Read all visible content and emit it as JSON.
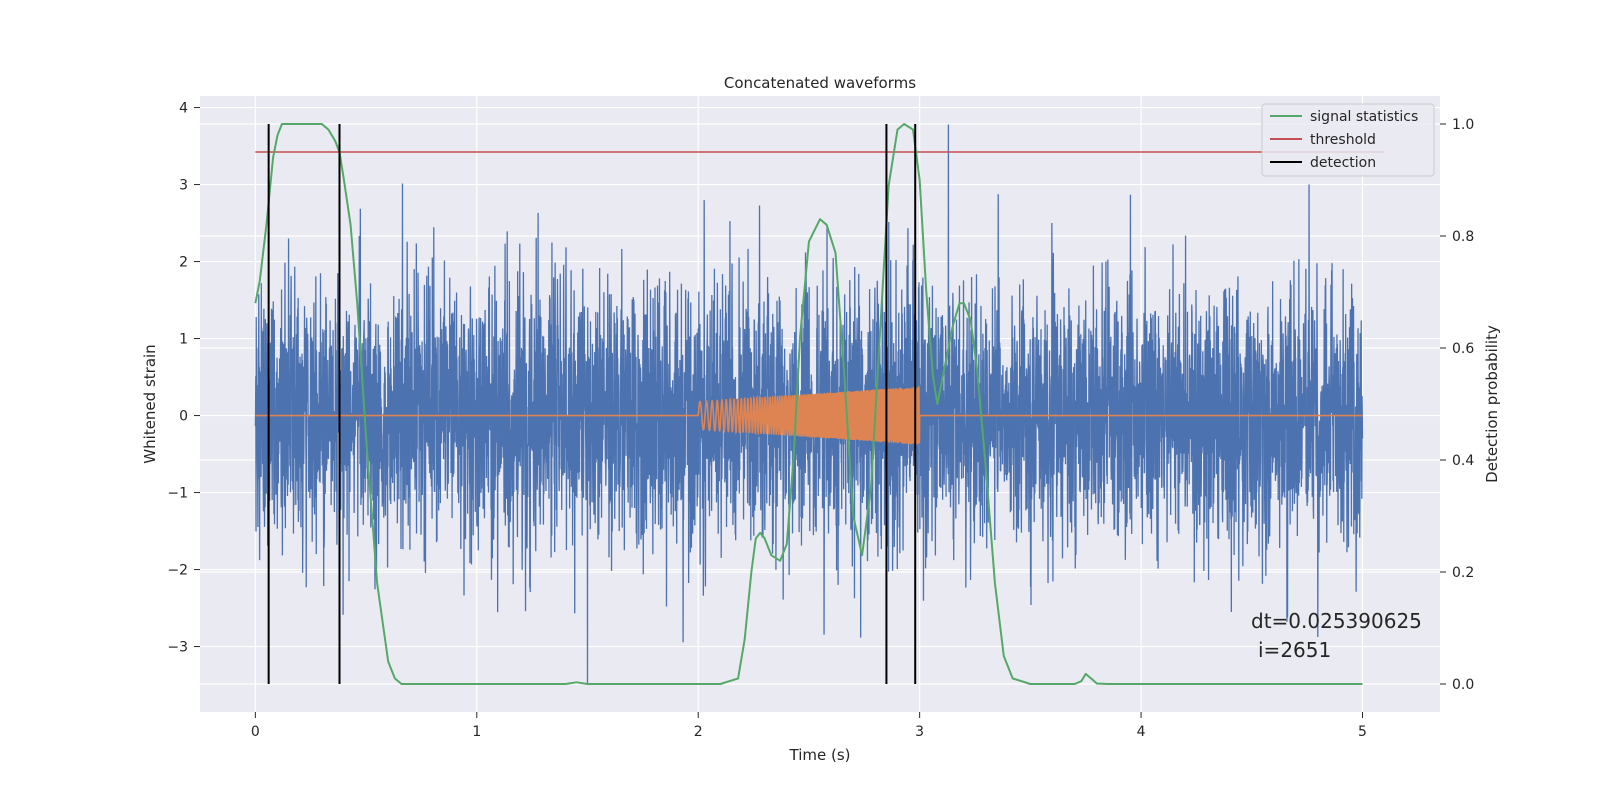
{
  "chart_data": {
    "type": "line",
    "title": "Concatenated waveforms",
    "xlabel": "Time (s)",
    "ylabel": "Whitened strain",
    "y2label": "Detection probability",
    "xlim": [
      -0.25,
      5.35
    ],
    "ylim": [
      -3.85,
      4.15
    ],
    "y2lim": [
      -0.05,
      1.05
    ],
    "x_ticks": [
      0,
      1,
      2,
      3,
      4,
      5
    ],
    "y_ticks": [
      -3,
      -2,
      -1,
      0,
      1,
      2,
      3,
      4
    ],
    "y2_ticks": [
      0.0,
      0.2,
      0.4,
      0.6,
      0.8,
      1.0
    ],
    "grid": true,
    "legend_position": "top-right",
    "colors": {
      "strain": "#4c72b0",
      "waveform": "#dd8452",
      "signal_statistics": "#55a868",
      "threshold": "#c44e52",
      "detection": "#000000",
      "background": "#eaeaf2",
      "grid": "#ffffff"
    },
    "series": [
      {
        "name": "",
        "axis": "left",
        "kind": "noise",
        "x_range": [
          0,
          5
        ],
        "std": 0.85,
        "typical_max": 2.5,
        "typical_min": -2.5,
        "extreme_max": 3.78,
        "extreme_min": -3.48,
        "extreme_max_x": 3.13,
        "extreme_min_x": 1.5
      },
      {
        "name": "",
        "axis": "left",
        "kind": "chirp",
        "flat_range": [
          0,
          5
        ],
        "chirp_start": 2.0,
        "chirp_end": 3.0,
        "amp_start": 0.18,
        "amp_end": 0.38
      },
      {
        "name": "signal statistics",
        "axis": "right",
        "x": [
          0.0,
          0.02,
          0.05,
          0.08,
          0.1,
          0.12,
          0.15,
          0.2,
          0.3,
          0.33,
          0.36,
          0.38,
          0.4,
          0.43,
          0.46,
          0.5,
          0.55,
          0.6,
          0.63,
          0.66,
          0.7,
          0.9,
          1.4,
          1.45,
          1.5,
          1.55,
          1.8,
          2.1,
          2.18,
          2.21,
          2.24,
          2.26,
          2.28,
          2.3,
          2.33,
          2.37,
          2.4,
          2.43,
          2.46,
          2.5,
          2.55,
          2.58,
          2.62,
          2.66,
          2.7,
          2.74,
          2.78,
          2.82,
          2.86,
          2.9,
          2.93,
          2.97,
          3.0,
          3.03,
          3.06,
          3.08,
          3.12,
          3.15,
          3.18,
          3.2,
          3.23,
          3.26,
          3.3,
          3.34,
          3.38,
          3.42,
          3.5,
          3.7,
          3.73,
          3.75,
          3.78,
          3.8,
          3.85,
          4.2,
          5.0
        ],
        "values": [
          0.68,
          0.72,
          0.82,
          0.94,
          0.98,
          1.0,
          1.0,
          1.0,
          1.0,
          0.99,
          0.97,
          0.95,
          0.9,
          0.82,
          0.68,
          0.44,
          0.18,
          0.04,
          0.01,
          0.0,
          0.0,
          0.0,
          0.0,
          0.003,
          0.0,
          0.0,
          0.0,
          0.0,
          0.01,
          0.08,
          0.2,
          0.26,
          0.27,
          0.26,
          0.23,
          0.22,
          0.25,
          0.4,
          0.62,
          0.79,
          0.83,
          0.82,
          0.77,
          0.55,
          0.3,
          0.23,
          0.35,
          0.62,
          0.89,
          0.99,
          1.0,
          0.99,
          0.9,
          0.7,
          0.55,
          0.5,
          0.58,
          0.64,
          0.68,
          0.68,
          0.65,
          0.56,
          0.38,
          0.18,
          0.05,
          0.01,
          0.0,
          0.0,
          0.005,
          0.018,
          0.008,
          0.001,
          0.0,
          0.0,
          0.0
        ]
      },
      {
        "name": "threshold",
        "axis": "right",
        "x": [
          0,
          5.1
        ],
        "values": [
          0.95,
          0.95
        ]
      },
      {
        "name": "detection",
        "axis": "right",
        "kind": "vlines",
        "x": [
          0.06,
          0.38,
          2.85,
          2.98
        ],
        "y_from": 0.0,
        "y_to": 1.0
      }
    ],
    "legend": [
      "signal statistics",
      "threshold",
      "detection"
    ],
    "annotation": {
      "line1": "dt=0.025390625",
      "line2": "i=2651"
    }
  }
}
